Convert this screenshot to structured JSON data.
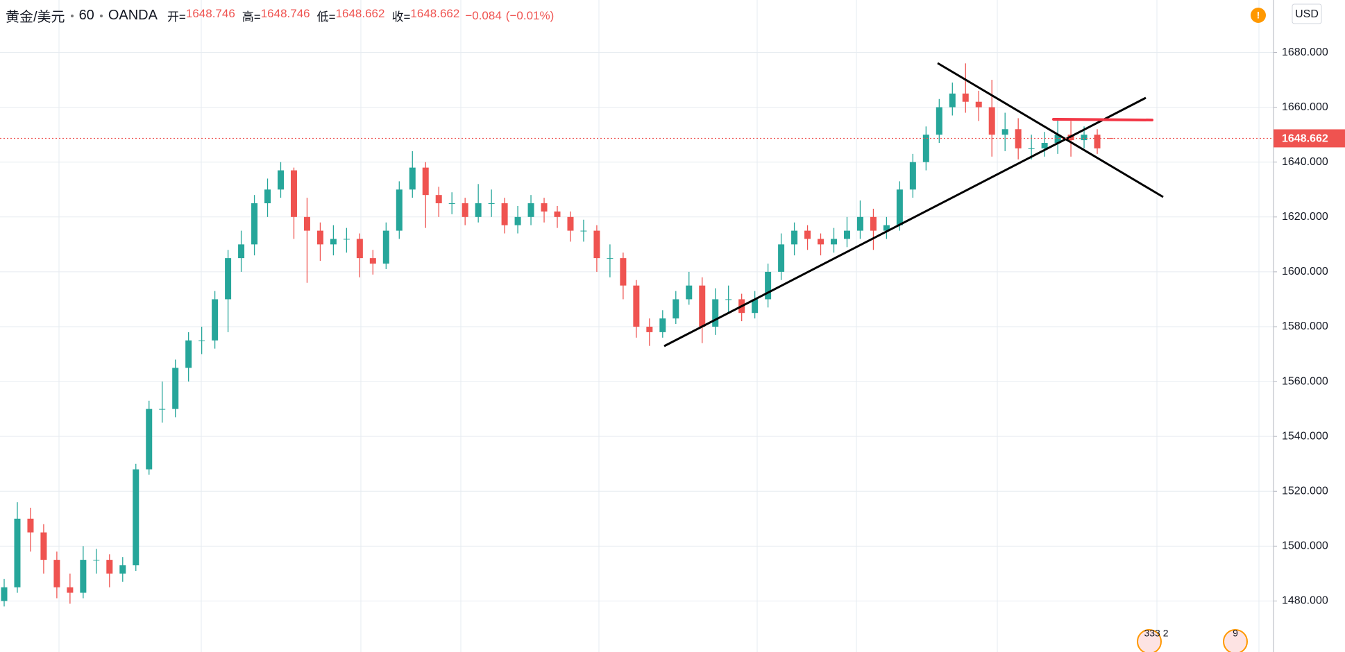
{
  "chart_data": {
    "type": "candlestick",
    "title": "黄金/美元",
    "interval": 60,
    "source": "OANDA",
    "legend_values": [
      {
        "label": "开=",
        "value": 1648.746
      },
      {
        "label": "高=",
        "value": 1648.746
      },
      {
        "label": "低=",
        "value": 1648.662
      },
      {
        "label": "收=",
        "value": 1648.662
      }
    ],
    "change": {
      "value": -0.084,
      "label": "−0.084"
    },
    "change_pct": {
      "value": -0.01,
      "label": "(−0.01%)"
    },
    "currency": "USD",
    "alert": "!",
    "events": [
      "333 2",
      "9"
    ],
    "last_price": 1648.662,
    "up_color": "#26a69a",
    "down_color": "#ef5350",
    "grid": true,
    "ylim": [
      1461.4,
      1699.1
    ],
    "yticks": [
      {
        "value": 1480,
        "label": "1480.000"
      },
      {
        "value": 1500,
        "label": "1500.000"
      },
      {
        "value": 1520,
        "label": "1520.000"
      },
      {
        "value": 1540,
        "label": "1540.000"
      },
      {
        "value": 1560,
        "label": "1560.000"
      },
      {
        "value": 1580,
        "label": "1580.000"
      },
      {
        "value": 1600,
        "label": "1600.000"
      },
      {
        "value": 1620,
        "label": "1620.000"
      },
      {
        "value": 1640,
        "label": "1640.000"
      },
      {
        "value": 1660,
        "label": "1660.000"
      },
      {
        "value": 1680,
        "label": "1680.000"
      }
    ],
    "open": [
      1480,
      1485,
      1510,
      1505,
      1495,
      1485,
      1483,
      1495,
      1495,
      1490,
      1493,
      1528,
      1550,
      1550,
      1565,
      1575,
      1575,
      1590,
      1605,
      1610,
      1625,
      1630,
      1637,
      1620,
      1615,
      1610,
      1612,
      1612,
      1605,
      1603,
      1615,
      1630,
      1638,
      1628,
      1625,
      1625,
      1620,
      1625,
      1625,
      1617,
      1620,
      1625,
      1622,
      1620,
      1615,
      1615,
      1605,
      1605,
      1595,
      1580,
      1578,
      1583,
      1590,
      1595,
      1580,
      1590,
      1590,
      1585,
      1590,
      1600,
      1610,
      1615,
      1612,
      1610,
      1612,
      1615,
      1620,
      1615,
      1617,
      1630,
      1640,
      1650,
      1660,
      1665,
      1662,
      1660,
      1650,
      1652,
      1645,
      1645,
      1647,
      1650,
      1648,
      1650,
      1648.746
    ],
    "high": [
      1488,
      1516,
      1514,
      1508,
      1498,
      1490,
      1500,
      1499,
      1497,
      1496,
      1530,
      1553,
      1560,
      1568,
      1578,
      1580,
      1593,
      1608,
      1615,
      1628,
      1634,
      1640,
      1638,
      1627,
      1618,
      1617,
      1616,
      1614,
      1608,
      1618,
      1633,
      1644,
      1640,
      1631,
      1629,
      1627,
      1632,
      1630,
      1627,
      1624,
      1628,
      1627,
      1624,
      1622,
      1619,
      1617,
      1610,
      1607,
      1597,
      1583,
      1586,
      1593,
      1600,
      1598,
      1594,
      1595,
      1592,
      1593,
      1603,
      1614,
      1618,
      1617,
      1614,
      1616,
      1620,
      1626,
      1623,
      1620,
      1633,
      1643,
      1653,
      1663,
      1669,
      1676,
      1666,
      1670,
      1658,
      1656,
      1650,
      1651,
      1656,
      1655,
      1653,
      1652,
      1648.746
    ],
    "low": [
      1478,
      1483,
      1498,
      1490,
      1481,
      1479,
      1481,
      1490,
      1485,
      1487,
      1491,
      1526,
      1545,
      1547,
      1560,
      1570,
      1572,
      1578,
      1600,
      1606,
      1620,
      1627,
      1612,
      1596,
      1604,
      1606,
      1607,
      1598,
      1599,
      1601,
      1612,
      1627,
      1616,
      1620,
      1621,
      1617,
      1618,
      1620,
      1614,
      1614,
      1617,
      1618,
      1616,
      1611,
      1611,
      1600,
      1598,
      1590,
      1576,
      1573,
      1576,
      1581,
      1588,
      1574,
      1577,
      1585,
      1582,
      1583,
      1587,
      1597,
      1606,
      1608,
      1606,
      1607,
      1609,
      1612,
      1608,
      1612,
      1615,
      1627,
      1637,
      1647,
      1657,
      1658,
      1655,
      1642,
      1644,
      1641,
      1641,
      1642,
      1643,
      1642,
      1645,
      1643,
      1648.662
    ],
    "close": [
      1485,
      1510,
      1505,
      1495,
      1485,
      1483,
      1495,
      1495,
      1490,
      1493,
      1528,
      1550,
      1550,
      1565,
      1575,
      1575,
      1590,
      1605,
      1610,
      1625,
      1630,
      1637,
      1620,
      1615,
      1610,
      1612,
      1612,
      1605,
      1603,
      1615,
      1630,
      1638,
      1628,
      1625,
      1625,
      1620,
      1625,
      1625,
      1617,
      1620,
      1625,
      1622,
      1620,
      1615,
      1615,
      1605,
      1605,
      1595,
      1580,
      1578,
      1583,
      1590,
      1595,
      1580,
      1590,
      1590,
      1585,
      1590,
      1600,
      1610,
      1615,
      1612,
      1610,
      1612,
      1615,
      1620,
      1615,
      1617,
      1630,
      1640,
      1650,
      1660,
      1665,
      1662,
      1660,
      1650,
      1652,
      1645,
      1645,
      1647,
      1650,
      1648,
      1650,
      1645,
      1648.662
    ]
  }
}
